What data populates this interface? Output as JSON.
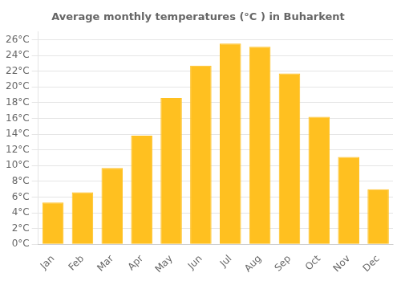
{
  "chart_data": {
    "type": "bar",
    "title": "Average monthly temperatures (°C ) in Buharkent",
    "categories": [
      "Jan",
      "Feb",
      "Mar",
      "Apr",
      "May",
      "Jun",
      "Jul",
      "Aug",
      "Sep",
      "Oct",
      "Nov",
      "Dec"
    ],
    "values": [
      5.3,
      6.6,
      9.7,
      13.8,
      18.6,
      22.7,
      25.5,
      25.1,
      21.7,
      16.2,
      11.1,
      7.0
    ],
    "color": "#FFC020",
    "ylim": [
      0,
      27
    ],
    "yticks": [
      {
        "value": 0,
        "label": "0°C"
      },
      {
        "value": 2,
        "label": "2°C"
      },
      {
        "value": 4,
        "label": "4°C"
      },
      {
        "value": 6,
        "label": "6°C"
      },
      {
        "value": 8,
        "label": "8°C"
      },
      {
        "value": 10,
        "label": "10°C"
      },
      {
        "value": 12,
        "label": "12°C"
      },
      {
        "value": 14,
        "label": "14°C"
      },
      {
        "value": 16,
        "label": "16°C"
      },
      {
        "value": 18,
        "label": "18°C"
      },
      {
        "value": 20,
        "label": "20°C"
      },
      {
        "value": 22,
        "label": "22°C"
      },
      {
        "value": 24,
        "label": "24°C"
      },
      {
        "value": 26,
        "label": "26°C"
      }
    ],
    "grid": true
  }
}
